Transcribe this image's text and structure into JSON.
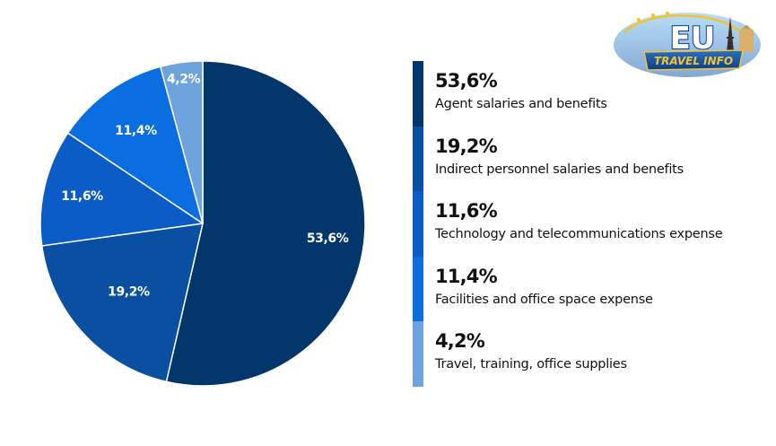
{
  "chart_data": {
    "type": "pie",
    "start_angle_deg": 0,
    "direction": "clockwise",
    "slices": [
      {
        "label": "Agent salaries and benefits",
        "value": 53.6,
        "value_text": "53,6%",
        "color": "#03366b"
      },
      {
        "label": "Indirect personnel salaries and benefits",
        "value": 19.2,
        "value_text": "19,2%",
        "color": "#0a4fa2"
      },
      {
        "label": "Technology and telecommunications expense",
        "value": 11.6,
        "value_text": "11,6%",
        "color": "#0b5cc7"
      },
      {
        "label": "Facilities and office space expense",
        "value": 11.4,
        "value_text": "11,4%",
        "color": "#0a6ee0"
      },
      {
        "label": "Travel, training, office supplies",
        "value": 4.2,
        "value_text": "4,2%",
        "color": "#6ea3dd"
      }
    ]
  },
  "logo": {
    "line1": "EU",
    "line2": "TRAVEL INFO"
  }
}
